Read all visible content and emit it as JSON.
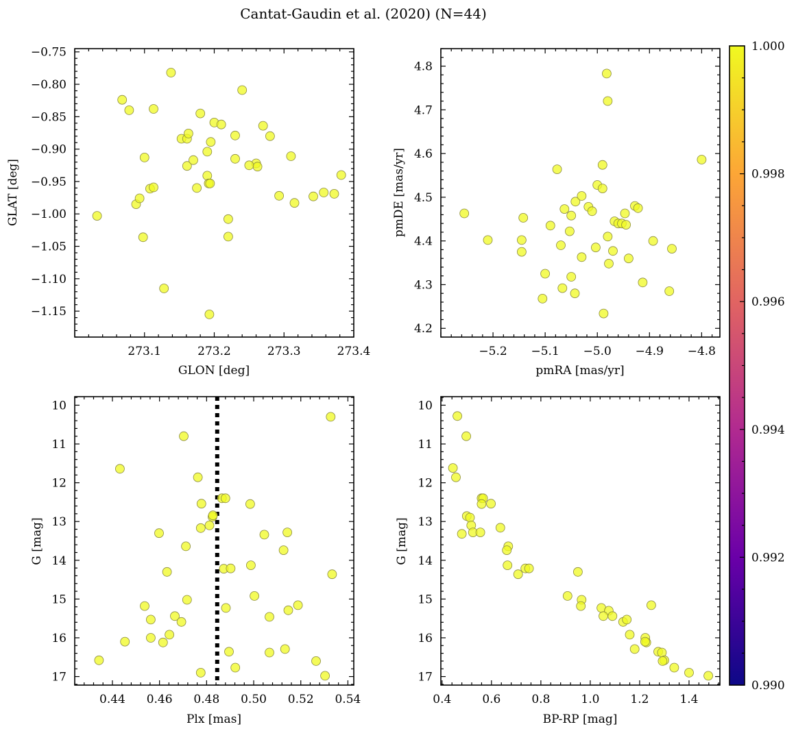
{
  "figure": {
    "title": "Cantat-Gaudin et al. (2020) (N=44)"
  },
  "colorbar": {
    "min": 0.99,
    "max": 1.0,
    "ticks": [
      "0.990",
      "0.992",
      "0.994",
      "0.996",
      "0.998",
      "1.000"
    ],
    "colormap": "plasma",
    "stops": [
      "#0d0887",
      "#6a00a8",
      "#b12a90",
      "#e16462",
      "#fca636",
      "#f0f921"
    ]
  },
  "point_color": "#f0f921",
  "chart_data": [
    {
      "id": "glon-glat",
      "type": "scatter",
      "xlabel": "GLON [deg]",
      "ylabel": "GLAT [deg]",
      "xlim": [
        273.0,
        273.4
      ],
      "ylim": [
        -1.19,
        -0.745
      ],
      "xticks": [
        273.1,
        273.2,
        273.3,
        273.4
      ],
      "xtick_labels": [
        "273.1",
        "273.2",
        "273.3",
        "273.4"
      ],
      "yticks": [
        -0.75,
        -0.8,
        -0.85,
        -0.9,
        -0.95,
        -1.0,
        -1.05,
        -1.1,
        -1.15
      ],
      "ytick_labels": [
        "−0.75",
        "−0.80",
        "−0.85",
        "−0.90",
        "−0.95",
        "−1.00",
        "−1.05",
        "−1.10",
        "−1.15"
      ],
      "points": [
        [
          273.032,
          -1.003
        ],
        [
          273.068,
          -0.824
        ],
        [
          273.078,
          -0.84
        ],
        [
          273.088,
          -0.985
        ],
        [
          273.093,
          -0.976
        ],
        [
          273.098,
          -1.036
        ],
        [
          273.1,
          -0.913
        ],
        [
          273.108,
          -0.961
        ],
        [
          273.113,
          -0.959
        ],
        [
          273.113,
          -0.838
        ],
        [
          273.138,
          -0.782
        ],
        [
          273.128,
          -1.115
        ],
        [
          273.153,
          -0.884
        ],
        [
          273.161,
          -0.884
        ],
        [
          273.163,
          -0.876
        ],
        [
          273.161,
          -0.926
        ],
        [
          273.17,
          -0.917
        ],
        [
          273.175,
          -0.96
        ],
        [
          273.18,
          -0.845
        ],
        [
          273.19,
          -0.904
        ],
        [
          273.19,
          -0.941
        ],
        [
          273.192,
          -0.953
        ],
        [
          273.194,
          -0.953
        ],
        [
          273.195,
          -0.889
        ],
        [
          273.193,
          -1.155
        ],
        [
          273.2,
          -0.859
        ],
        [
          273.21,
          -0.862
        ],
        [
          273.22,
          -1.008
        ],
        [
          273.22,
          -1.035
        ],
        [
          273.23,
          -0.879
        ],
        [
          273.23,
          -0.915
        ],
        [
          273.24,
          -0.809
        ],
        [
          273.26,
          -0.922
        ],
        [
          273.262,
          -0.927
        ],
        [
          273.27,
          -0.864
        ],
        [
          273.28,
          -0.88
        ],
        [
          273.293,
          -0.972
        ],
        [
          273.31,
          -0.911
        ],
        [
          273.315,
          -0.983
        ],
        [
          273.342,
          -0.973
        ],
        [
          273.357,
          -0.967
        ],
        [
          273.372,
          -0.969
        ],
        [
          273.382,
          -0.94
        ],
        [
          273.25,
          -0.925
        ]
      ]
    },
    {
      "id": "pmra-pmde",
      "type": "scatter",
      "xlabel": "pmRA [mas/yr]",
      "ylabel": "pmDE [mas/yr]",
      "xlim": [
        -5.3,
        -4.765
      ],
      "ylim": [
        4.18,
        4.84
      ],
      "xticks": [
        -5.2,
        -5.1,
        -5.0,
        -4.9,
        -4.8
      ],
      "xtick_labels": [
        "−5.2",
        "−5.1",
        "−5.0",
        "−4.9",
        "−4.8"
      ],
      "yticks": [
        4.2,
        4.3,
        4.4,
        4.5,
        4.6,
        4.7,
        4.8
      ],
      "ytick_labels": [
        "4.2",
        "4.3",
        "4.4",
        "4.5",
        "4.6",
        "4.7",
        "4.8"
      ],
      "points": [
        [
          -5.255,
          4.463
        ],
        [
          -5.21,
          4.402
        ],
        [
          -5.145,
          4.402
        ],
        [
          -5.145,
          4.375
        ],
        [
          -5.142,
          4.453
        ],
        [
          -5.105,
          4.268
        ],
        [
          -5.1,
          4.325
        ],
        [
          -5.09,
          4.435
        ],
        [
          -5.077,
          4.564
        ],
        [
          -5.07,
          4.39
        ],
        [
          -5.067,
          4.292
        ],
        [
          -5.063,
          4.473
        ],
        [
          -5.053,
          4.422
        ],
        [
          -5.05,
          4.458
        ],
        [
          -5.05,
          4.318
        ],
        [
          -5.042,
          4.49
        ],
        [
          -5.043,
          4.28
        ],
        [
          -5.03,
          4.503
        ],
        [
          -5.03,
          4.363
        ],
        [
          -5.017,
          4.478
        ],
        [
          -5.01,
          4.468
        ],
        [
          -5.003,
          4.385
        ],
        [
          -5.0,
          4.528
        ],
        [
          -4.99,
          4.574
        ],
        [
          -4.99,
          4.52
        ],
        [
          -4.988,
          4.234
        ],
        [
          -4.982,
          4.783
        ],
        [
          -4.98,
          4.72
        ],
        [
          -4.98,
          4.41
        ],
        [
          -4.978,
          4.348
        ],
        [
          -4.97,
          4.377
        ],
        [
          -4.967,
          4.445
        ],
        [
          -4.96,
          4.44
        ],
        [
          -4.953,
          4.44
        ],
        [
          -4.947,
          4.463
        ],
        [
          -4.945,
          4.437
        ],
        [
          -4.94,
          4.36
        ],
        [
          -4.928,
          4.48
        ],
        [
          -4.922,
          4.475
        ],
        [
          -4.913,
          4.305
        ],
        [
          -4.893,
          4.4
        ],
        [
          -4.862,
          4.285
        ],
        [
          -4.857,
          4.382
        ],
        [
          -4.8,
          4.586
        ]
      ]
    },
    {
      "id": "plx-g",
      "type": "scatter",
      "xlabel": "Plx [mas]",
      "ylabel": "G [mag]",
      "xlim": [
        0.424,
        0.5425
      ],
      "ylim": [
        17.22,
        9.78
      ],
      "y_inverted": true,
      "xticks": [
        0.44,
        0.46,
        0.48,
        0.5,
        0.52,
        0.54
      ],
      "xtick_labels": [
        "0.44",
        "0.46",
        "0.48",
        "0.50",
        "0.52",
        "0.54"
      ],
      "yticks": [
        10,
        11,
        12,
        13,
        14,
        15,
        16,
        17
      ],
      "ytick_labels": [
        "10",
        "11",
        "12",
        "13",
        "14",
        "15",
        "16",
        "17"
      ],
      "vline": 0.4845,
      "points": [
        [
          0.4343,
          16.58
        ],
        [
          0.4432,
          11.64
        ],
        [
          0.4453,
          16.1
        ],
        [
          0.4537,
          15.18
        ],
        [
          0.4563,
          15.53
        ],
        [
          0.4563,
          16.0
        ],
        [
          0.4598,
          13.3
        ],
        [
          0.4615,
          16.12
        ],
        [
          0.4632,
          14.3
        ],
        [
          0.4642,
          15.92
        ],
        [
          0.4665,
          15.44
        ],
        [
          0.4693,
          15.59
        ],
        [
          0.4703,
          10.8
        ],
        [
          0.4712,
          13.64
        ],
        [
          0.4717,
          15.02
        ],
        [
          0.4763,
          11.86
        ],
        [
          0.4775,
          16.9
        ],
        [
          0.4775,
          13.17
        ],
        [
          0.4778,
          12.54
        ],
        [
          0.4812,
          13.1
        ],
        [
          0.4825,
          12.88
        ],
        [
          0.4827,
          12.84
        ],
        [
          0.4865,
          12.4
        ],
        [
          0.488,
          12.4
        ],
        [
          0.4873,
          14.22
        ],
        [
          0.4882,
          15.23
        ],
        [
          0.4902,
          14.21
        ],
        [
          0.4895,
          16.36
        ],
        [
          0.4922,
          16.77
        ],
        [
          0.4988,
          14.13
        ],
        [
          0.4985,
          12.55
        ],
        [
          0.5003,
          14.92
        ],
        [
          0.5045,
          13.34
        ],
        [
          0.5067,
          16.38
        ],
        [
          0.5067,
          15.46
        ],
        [
          0.5133,
          16.29
        ],
        [
          0.5127,
          13.74
        ],
        [
          0.5143,
          13.28
        ],
        [
          0.5147,
          15.29
        ],
        [
          0.5188,
          15.16
        ],
        [
          0.5265,
          16.6
        ],
        [
          0.5303,
          16.98
        ],
        [
          0.5327,
          10.3
        ],
        [
          0.5333,
          14.36
        ]
      ]
    },
    {
      "id": "bprp-g",
      "type": "scatter",
      "xlabel": "BP-RP [mag]",
      "ylabel": "G [mag]",
      "xlim": [
        0.395,
        1.525
      ],
      "ylim": [
        17.22,
        9.78
      ],
      "y_inverted": true,
      "xticks": [
        0.4,
        0.6,
        0.8,
        1.0,
        1.2,
        1.4
      ],
      "xtick_labels": [
        "0.4",
        "0.6",
        "0.8",
        "1.0",
        "1.2",
        "1.4"
      ],
      "yticks": [
        10,
        11,
        12,
        13,
        14,
        15,
        16,
        17
      ],
      "ytick_labels": [
        "10",
        "11",
        "12",
        "13",
        "14",
        "15",
        "16",
        "17"
      ],
      "points": [
        [
          0.462,
          10.28
        ],
        [
          0.498,
          10.8
        ],
        [
          0.444,
          11.62
        ],
        [
          0.456,
          11.86
        ],
        [
          0.56,
          12.4
        ],
        [
          0.566,
          12.4
        ],
        [
          0.56,
          12.55
        ],
        [
          0.598,
          12.54
        ],
        [
          0.5,
          12.86
        ],
        [
          0.513,
          12.9
        ],
        [
          0.518,
          13.1
        ],
        [
          0.48,
          13.32
        ],
        [
          0.525,
          13.28
        ],
        [
          0.555,
          13.28
        ],
        [
          0.636,
          13.16
        ],
        [
          0.668,
          13.64
        ],
        [
          0.662,
          13.74
        ],
        [
          0.665,
          14.13
        ],
        [
          0.708,
          14.36
        ],
        [
          0.737,
          14.21
        ],
        [
          0.752,
          14.21
        ],
        [
          0.95,
          14.3
        ],
        [
          0.908,
          14.92
        ],
        [
          0.965,
          15.02
        ],
        [
          0.962,
          15.18
        ],
        [
          1.045,
          15.23
        ],
        [
          1.075,
          15.3
        ],
        [
          1.053,
          15.44
        ],
        [
          1.09,
          15.44
        ],
        [
          1.133,
          15.59
        ],
        [
          1.148,
          15.53
        ],
        [
          1.247,
          15.16
        ],
        [
          1.16,
          15.92
        ],
        [
          1.223,
          16.0
        ],
        [
          1.227,
          16.12
        ],
        [
          1.18,
          16.29
        ],
        [
          1.275,
          16.36
        ],
        [
          1.29,
          16.38
        ],
        [
          1.3,
          16.58
        ],
        [
          1.293,
          16.6
        ],
        [
          1.34,
          16.77
        ],
        [
          1.4,
          16.9
        ],
        [
          1.478,
          16.98
        ],
        [
          1.222,
          16.1
        ]
      ]
    }
  ]
}
